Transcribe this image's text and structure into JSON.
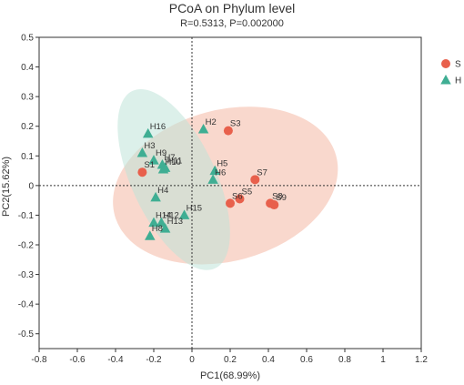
{
  "chart_data": {
    "type": "scatter",
    "title": "PCoA on Phylum level",
    "subtitle": "R=0.5313, P=0.002000",
    "xlabel": "PC1(68.99%)",
    "ylabel": "PC2(15.62%)",
    "xlim": [
      -0.8,
      1.2
    ],
    "ylim": [
      -0.55,
      0.5
    ],
    "xticks": [
      "-0.8",
      "-0.6",
      "-0.4",
      "-0.2",
      "0",
      "0.2",
      "0.4",
      "0.6",
      "0.8",
      "1",
      "1.2"
    ],
    "yticks": [
      "0.5",
      "0.4",
      "0.3",
      "0.2",
      "0.1",
      "0",
      "-0.1",
      "-0.2",
      "-0.3",
      "-0.4",
      "-0.5"
    ],
    "zero_lines": true,
    "legend_position": "top-right",
    "series": [
      {
        "name": "S",
        "marker": "circle",
        "color": "#e8604c",
        "ellipse_color": "#f4b8a4",
        "ellipse": {
          "cx": 0.175,
          "cy": 0.0,
          "rx": 0.6,
          "ry": 0.255,
          "angle_deg": -15
        },
        "points": [
          {
            "label": "S1",
            "x": -0.26,
            "y": 0.045
          },
          {
            "label": "S3",
            "x": 0.19,
            "y": 0.185
          },
          {
            "label": "S7",
            "x": 0.33,
            "y": 0.02
          },
          {
            "label": "S5",
            "x": 0.25,
            "y": -0.045
          },
          {
            "label": "S6",
            "x": 0.2,
            "y": -0.06
          },
          {
            "label": "S8",
            "x": 0.41,
            "y": -0.06
          },
          {
            "label": "S9",
            "x": 0.43,
            "y": -0.065
          }
        ]
      },
      {
        "name": "H",
        "marker": "triangle",
        "color": "#3fae93",
        "ellipse_color": "#bfe3d9",
        "ellipse": {
          "cx": -0.095,
          "cy": 0.02,
          "rx": 0.22,
          "ry": 0.33,
          "angle_deg": -25
        },
        "points": [
          {
            "label": "H2",
            "x": 0.06,
            "y": 0.19
          },
          {
            "label": "H16",
            "x": -0.23,
            "y": 0.175
          },
          {
            "label": "H3",
            "x": -0.26,
            "y": 0.11
          },
          {
            "label": "H9",
            "x": -0.2,
            "y": 0.085
          },
          {
            "label": "H7",
            "x": -0.155,
            "y": 0.07
          },
          {
            "label": "H11",
            "x": -0.14,
            "y": 0.06
          },
          {
            "label": "H10",
            "x": -0.15,
            "y": 0.055
          },
          {
            "label": "H5",
            "x": 0.12,
            "y": 0.05
          },
          {
            "label": "H6",
            "x": 0.11,
            "y": 0.02
          },
          {
            "label": "H4",
            "x": -0.19,
            "y": -0.04
          },
          {
            "label": "H15",
            "x": -0.04,
            "y": -0.1
          },
          {
            "label": "H14",
            "x": -0.2,
            "y": -0.125
          },
          {
            "label": "H12",
            "x": -0.16,
            "y": -0.125
          },
          {
            "label": "H13",
            "x": -0.14,
            "y": -0.145
          },
          {
            "label": "H8",
            "x": -0.22,
            "y": -0.17
          }
        ]
      }
    ]
  }
}
